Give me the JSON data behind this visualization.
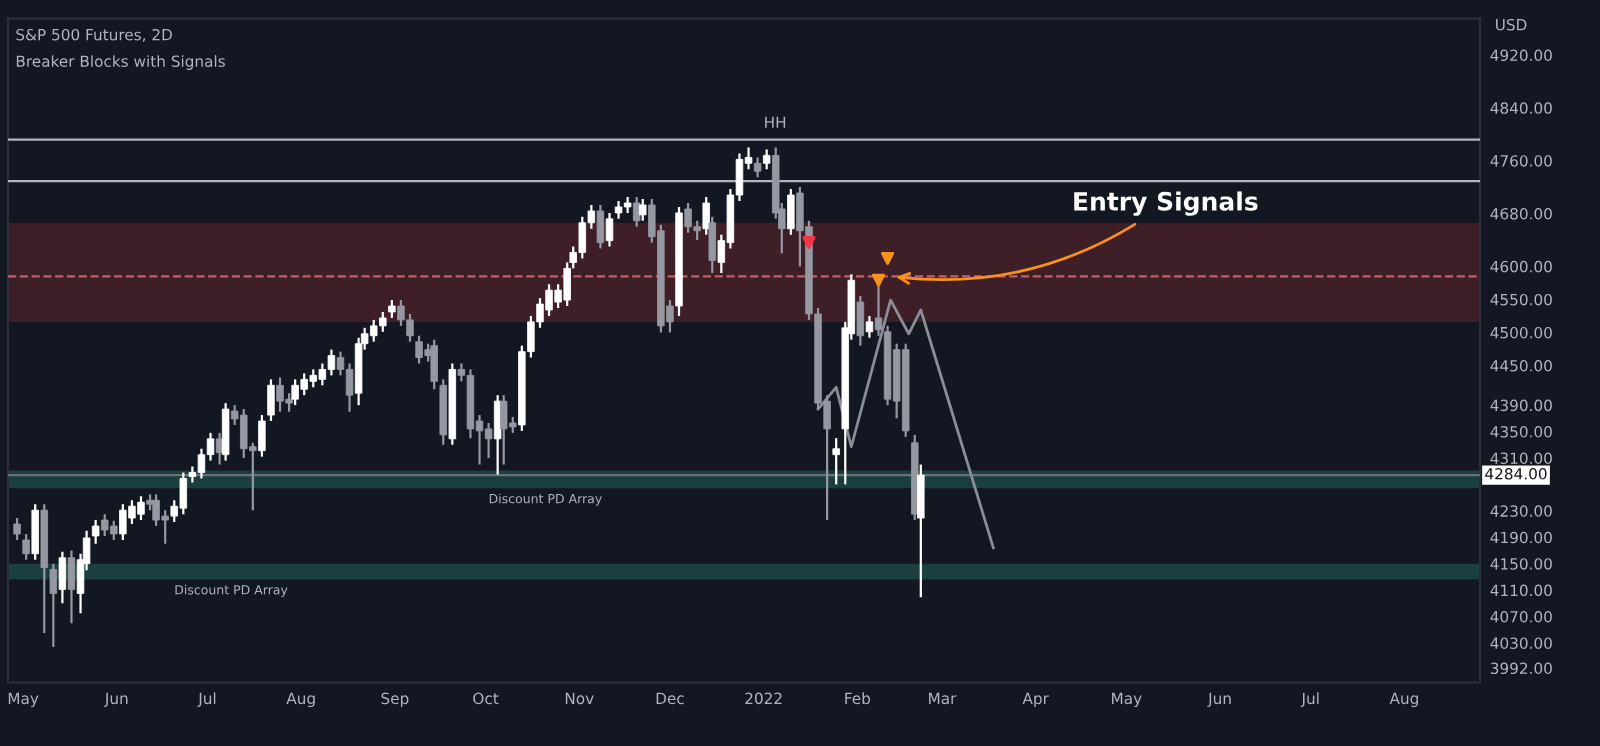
{
  "chart_data": {
    "type": "candlestick",
    "title": "S&P 500 Futures, 2D",
    "subtitle": "Breaker Blocks with Signals",
    "ylabel": "USD",
    "x": [
      "2021-04-29",
      "2021-05-02",
      "2021-05-05",
      "2021-05-08",
      "2021-05-11",
      "2021-05-14",
      "2021-05-17",
      "2021-05-20",
      "2021-05-22",
      "2021-05-25",
      "2021-05-28",
      "2021-05-31",
      "2021-06-03",
      "2021-06-06",
      "2021-06-09",
      "2021-06-12",
      "2021-06-14",
      "2021-06-17",
      "2021-06-20",
      "2021-06-23",
      "2021-06-26",
      "2021-06-29",
      "2021-07-02",
      "2021-07-05",
      "2021-07-07",
      "2021-07-10",
      "2021-07-13",
      "2021-07-16",
      "2021-07-19",
      "2021-07-22",
      "2021-07-25",
      "2021-07-28",
      "2021-07-30",
      "2021-08-02",
      "2021-08-05",
      "2021-08-08",
      "2021-08-11",
      "2021-08-14",
      "2021-08-17",
      "2021-08-20",
      "2021-08-22",
      "2021-08-25",
      "2021-08-28",
      "2021-08-31",
      "2021-09-03",
      "2021-09-06",
      "2021-09-09",
      "2021-09-12",
      "2021-09-14",
      "2021-09-17",
      "2021-09-20",
      "2021-09-23",
      "2021-09-26",
      "2021-09-29",
      "2021-10-02",
      "2021-10-05",
      "2021-10-07",
      "2021-10-10",
      "2021-10-13",
      "2021-10-16",
      "2021-10-19",
      "2021-10-22",
      "2021-10-25",
      "2021-10-28",
      "2021-10-30",
      "2021-11-02",
      "2021-11-05",
      "2021-11-08",
      "2021-11-11",
      "2021-11-14",
      "2021-11-17",
      "2021-11-20",
      "2021-11-22",
      "2021-11-25",
      "2021-11-28",
      "2021-12-01",
      "2021-12-04",
      "2021-12-07",
      "2021-12-10",
      "2021-12-13",
      "2021-12-15",
      "2021-12-18",
      "2021-12-21",
      "2021-12-24",
      "2021-12-27",
      "2021-12-30",
      "2022-01-02",
      "2022-01-05",
      "2022-01-07",
      "2022-01-10",
      "2022-01-13",
      "2022-01-16",
      "2022-01-19",
      "2022-01-22",
      "2022-01-25",
      "2022-01-28",
      "2022-01-30",
      "2022-02-02",
      "2022-02-05",
      "2022-02-08",
      "2022-02-11",
      "2022-02-14",
      "2022-02-17",
      "2022-02-20",
      "2022-02-22"
    ],
    "ohlc": [
      [
        4210,
        4219,
        4186,
        4195
      ],
      [
        4186,
        4195,
        4156,
        4165
      ],
      [
        4165,
        4240,
        4156,
        4231
      ],
      [
        4231,
        4240,
        4045,
        4144
      ],
      [
        4141,
        4150,
        4024,
        4105
      ],
      [
        4111,
        4168,
        4090,
        4159
      ],
      [
        4159,
        4170,
        4060,
        4111
      ],
      [
        4105,
        4165,
        4075,
        4156
      ],
      [
        4150,
        4200,
        4140,
        4189
      ],
      [
        4192,
        4216,
        4180,
        4207
      ],
      [
        4216,
        4225,
        4192,
        4201
      ],
      [
        4207,
        4215,
        4186,
        4195
      ],
      [
        4195,
        4240,
        4186,
        4231
      ],
      [
        4219,
        4246,
        4210,
        4237
      ],
      [
        4225,
        4252,
        4216,
        4243
      ],
      [
        4246,
        4255,
        4231,
        4240
      ],
      [
        4246,
        4255,
        4207,
        4216
      ],
      [
        4222,
        4231,
        4180,
        4216
      ],
      [
        4222,
        4246,
        4213,
        4237
      ],
      [
        4234,
        4288,
        4225,
        4279
      ],
      [
        4282,
        4297,
        4273,
        4288
      ],
      [
        4288,
        4324,
        4279,
        4315
      ],
      [
        4315,
        4348,
        4306,
        4339
      ],
      [
        4339,
        4348,
        4300,
        4318
      ],
      [
        4315,
        4393,
        4306,
        4384
      ],
      [
        4381,
        4390,
        4360,
        4369
      ],
      [
        4375,
        4384,
        4310,
        4324
      ],
      [
        4327,
        4333,
        4231,
        4321
      ],
      [
        4321,
        4375,
        4312,
        4366
      ],
      [
        4375,
        4429,
        4366,
        4420
      ],
      [
        4420,
        4432,
        4380,
        4396
      ],
      [
        4399,
        4408,
        4380,
        4393
      ],
      [
        4399,
        4429,
        4390,
        4420
      ],
      [
        4414,
        4438,
        4405,
        4429
      ],
      [
        4426,
        4444,
        4417,
        4435
      ],
      [
        4429,
        4453,
        4420,
        4444
      ],
      [
        4444,
        4474,
        4435,
        4465
      ],
      [
        4462,
        4471,
        4435,
        4444
      ],
      [
        4444,
        4453,
        4380,
        4405
      ],
      [
        4408,
        4492,
        4390,
        4483
      ],
      [
        4483,
        4507,
        4474,
        4498
      ],
      [
        4495,
        4519,
        4486,
        4510
      ],
      [
        4510,
        4531,
        4501,
        4522
      ],
      [
        4531,
        4549,
        4522,
        4540
      ],
      [
        4540,
        4549,
        4510,
        4519
      ],
      [
        4519,
        4528,
        4486,
        4495
      ],
      [
        4486,
        4495,
        4453,
        4462
      ],
      [
        4474,
        4483,
        4456,
        4465
      ],
      [
        4480,
        4489,
        4414,
        4426
      ],
      [
        4420,
        4429,
        4330,
        4345
      ],
      [
        4339,
        4453,
        4330,
        4444
      ],
      [
        4444,
        4453,
        4426,
        4435
      ],
      [
        4435,
        4444,
        4340,
        4354
      ],
      [
        4366,
        4375,
        4300,
        4351
      ],
      [
        4354,
        4363,
        4310,
        4339
      ],
      [
        4339,
        4405,
        4285,
        4396
      ],
      [
        4396,
        4405,
        4300,
        4354
      ],
      [
        4363,
        4372,
        4348,
        4357
      ],
      [
        4360,
        4480,
        4351,
        4471
      ],
      [
        4471,
        4525,
        4462,
        4516
      ],
      [
        4516,
        4552,
        4507,
        4543
      ],
      [
        4534,
        4573,
        4525,
        4564
      ],
      [
        4546,
        4573,
        4537,
        4564
      ],
      [
        4549,
        4606,
        4540,
        4597
      ],
      [
        4606,
        4630,
        4597,
        4621
      ],
      [
        4621,
        4675,
        4612,
        4666
      ],
      [
        4666,
        4693,
        4657,
        4684
      ],
      [
        4684,
        4693,
        4627,
        4636
      ],
      [
        4639,
        4681,
        4630,
        4672
      ],
      [
        4681,
        4699,
        4672,
        4690
      ],
      [
        4690,
        4705,
        4681,
        4696
      ],
      [
        4696,
        4705,
        4660,
        4669
      ],
      [
        4678,
        4702,
        4669,
        4693
      ],
      [
        4693,
        4702,
        4636,
        4645
      ],
      [
        4654,
        4663,
        4500,
        4510
      ],
      [
        4540,
        4549,
        4500,
        4516
      ],
      [
        4540,
        4690,
        4525,
        4681
      ],
      [
        4687,
        4696,
        4651,
        4660
      ],
      [
        4660,
        4669,
        4640,
        4654
      ],
      [
        4657,
        4705,
        4648,
        4696
      ],
      [
        4666,
        4675,
        4590,
        4609
      ],
      [
        4606,
        4648,
        4590,
        4639
      ],
      [
        4636,
        4717,
        4627,
        4708
      ],
      [
        4708,
        4771,
        4699,
        4762
      ],
      [
        4756,
        4780,
        4747,
        4765
      ],
      [
        4756,
        4765,
        4735,
        4744
      ],
      [
        4756,
        4777,
        4747,
        4768
      ],
      [
        4768,
        4780,
        4672,
        4681
      ],
      [
        4687,
        4696,
        4620,
        4657
      ],
      [
        4657,
        4717,
        4648,
        4708
      ],
      [
        4711,
        4720,
        4600,
        4654
      ],
      [
        4660,
        4669,
        4519,
        4528
      ],
      [
        4528,
        4537,
        4384,
        4393
      ],
      [
        4396,
        4405,
        4216,
        4354
      ],
      [
        4315,
        4340,
        4270,
        4324
      ],
      [
        4354,
        4516,
        4270,
        4507
      ],
      [
        4498,
        4588,
        4489,
        4579
      ],
      [
        4546,
        4555,
        4480,
        4495
      ],
      [
        4501,
        4525,
        4492,
        4516
      ],
      [
        4522,
        4570,
        4495,
        4504
      ],
      [
        4501,
        4510,
        4390,
        4399
      ],
      [
        4474,
        4483,
        4370,
        4396
      ],
      [
        4474,
        4483,
        4342,
        4351
      ],
      [
        4333,
        4345,
        4216,
        4225
      ],
      [
        4219,
        4300,
        4099,
        4284
      ]
    ],
    "colors": [
      "#9598a1",
      "#9598a1",
      "#ffffff",
      "#9598a1",
      "#9598a1",
      "#ffffff",
      "#9598a1",
      "#ffffff",
      "#ffffff",
      "#ffffff",
      "#9598a1",
      "#9598a1",
      "#ffffff",
      "#ffffff",
      "#ffffff",
      "#9598a1",
      "#9598a1",
      "#9598a1",
      "#ffffff",
      "#ffffff",
      "#ffffff",
      "#ffffff",
      "#ffffff",
      "#9598a1",
      "#ffffff",
      "#9598a1",
      "#9598a1",
      "#9598a1",
      "#ffffff",
      "#ffffff",
      "#9598a1",
      "#9598a1",
      "#ffffff",
      "#ffffff",
      "#ffffff",
      "#ffffff",
      "#ffffff",
      "#9598a1",
      "#9598a1",
      "#ffffff",
      "#ffffff",
      "#ffffff",
      "#ffffff",
      "#ffffff",
      "#9598a1",
      "#9598a1",
      "#9598a1",
      "#9598a1",
      "#9598a1",
      "#9598a1",
      "#ffffff",
      "#9598a1",
      "#9598a1",
      "#9598a1",
      "#9598a1",
      "#ffffff",
      "#9598a1",
      "#9598a1",
      "#ffffff",
      "#ffffff",
      "#ffffff",
      "#ffffff",
      "#ffffff",
      "#ffffff",
      "#ffffff",
      "#ffffff",
      "#ffffff",
      "#9598a1",
      "#ffffff",
      "#ffffff",
      "#ffffff",
      "#9598a1",
      "#ffffff",
      "#9598a1",
      "#9598a1",
      "#9598a1",
      "#ffffff",
      "#9598a1",
      "#9598a1",
      "#ffffff",
      "#9598a1",
      "#ffffff",
      "#ffffff",
      "#ffffff",
      "#ffffff",
      "#9598a1",
      "#ffffff",
      "#9598a1",
      "#9598a1",
      "#ffffff",
      "#9598a1",
      "#9598a1",
      "#9598a1",
      "#9598a1",
      "#ffffff",
      "#ffffff",
      "#ffffff",
      "#9598a1",
      "#ffffff",
      "#9598a1",
      "#9598a1",
      "#9598a1",
      "#9598a1",
      "#9598a1",
      "#ffffff"
    ],
    "series": [
      {
        "type": "line",
        "color": "#8a8e97",
        "x": [
          "2022-01-19",
          "2022-01-25",
          "2022-01-30",
          "2022-02-12",
          "2022-02-18",
          "2022-02-22",
          "2022-03-18"
        ],
        "values": [
          4384,
          4417,
          4327,
          4549,
          4498,
          4534,
          4174
        ]
      },
      {
        "type": "scatter",
        "marker": "triangle",
        "color": "#f7931a",
        "x": [
          "2022-02-08",
          "2022-02-11"
        ],
        "values": [
          4579,
          4612
        ]
      },
      {
        "type": "scatter",
        "marker": "triangle",
        "color": "#f23645",
        "x": [
          "2022-01-16"
        ],
        "values": [
          4636
        ]
      }
    ],
    "xlim": [
      "2021-04-26",
      "2022-08-26"
    ],
    "xticks": [
      {
        "value": "2021-05-01",
        "label": "May"
      },
      {
        "value": "2021-06-01",
        "label": "Jun"
      },
      {
        "value": "2021-07-01",
        "label": "Jul"
      },
      {
        "value": "2021-08-01",
        "label": "Aug"
      },
      {
        "value": "2021-09-01",
        "label": "Sep"
      },
      {
        "value": "2021-10-01",
        "label": "Oct"
      },
      {
        "value": "2021-11-01",
        "label": "Nov"
      },
      {
        "value": "2021-12-01",
        "label": "Dec"
      },
      {
        "value": "2022-01-01",
        "label": "2022"
      },
      {
        "value": "2022-02-01",
        "label": "Feb"
      },
      {
        "value": "2022-03-01",
        "label": "Mar"
      },
      {
        "value": "2022-04-01",
        "label": "Apr"
      },
      {
        "value": "2022-05-01",
        "label": "May"
      },
      {
        "value": "2022-06-01",
        "label": "Jun"
      },
      {
        "value": "2022-07-01",
        "label": "Jul"
      },
      {
        "value": "2022-08-01",
        "label": "Aug"
      }
    ],
    "ylim": [
      3970,
      4975
    ],
    "yticks": [
      {
        "value": 3992,
        "label": "3992.00"
      },
      {
        "value": 4030,
        "label": "4030.00"
      },
      {
        "value": 4070,
        "label": "4070.00"
      },
      {
        "value": 4110,
        "label": "4110.00"
      },
      {
        "value": 4150,
        "label": "4150.00"
      },
      {
        "value": 4190,
        "label": "4190.00"
      },
      {
        "value": 4230,
        "label": "4230.00"
      },
      {
        "value": 4310,
        "label": "4310.00"
      },
      {
        "value": 4350,
        "label": "4350.00"
      },
      {
        "value": 4390,
        "label": "4390.00"
      },
      {
        "value": 4450,
        "label": "4450.00"
      },
      {
        "value": 4500,
        "label": "4500.00"
      },
      {
        "value": 4550,
        "label": "4550.00"
      },
      {
        "value": 4600,
        "label": "4600.00"
      },
      {
        "value": 4680,
        "label": "4680.00"
      },
      {
        "value": 4760,
        "label": "4760.00"
      },
      {
        "value": 4840,
        "label": "4840.00"
      },
      {
        "value": 4920,
        "label": "4920.00"
      }
    ],
    "ref_lines": [
      {
        "axis": "y",
        "value": 4284,
        "label": "4284.00",
        "color": "#6b6f78",
        "line_style": "solid"
      },
      {
        "axis": "y",
        "value": 4792,
        "label": null,
        "color": "#b2b5be",
        "line_style": "solid"
      },
      {
        "axis": "y",
        "value": 4729,
        "label": null,
        "color": "#b2b5be",
        "line_style": "solid"
      },
      {
        "axis": "y",
        "value": 4585,
        "label": null,
        "color": "#c0606a",
        "line_style": "dashed"
      }
    ],
    "bands": [
      {
        "axis": "y",
        "from": 4264,
        "to": 4291,
        "label": null,
        "color": "#1e4a47"
      },
      {
        "axis": "y",
        "from": 4126,
        "to": 4150,
        "label": null,
        "color": "#1e4a47"
      },
      {
        "axis": "y",
        "from": 4516,
        "to": 4666,
        "label": null,
        "color": "#4a2029"
      }
    ],
    "annotations": [
      {
        "text": "HH",
        "x": "2022-01-01",
        "y": 4805
      },
      {
        "text": "Entry Signals",
        "x": "2022-02-12",
        "y": 4585
      },
      {
        "text": "Discount PD Array",
        "x": "2021-06-20",
        "y": 4126
      },
      {
        "text": "Discount PD Array",
        "x": "2021-10-02",
        "y": 4264
      }
    ],
    "grid": false
  }
}
